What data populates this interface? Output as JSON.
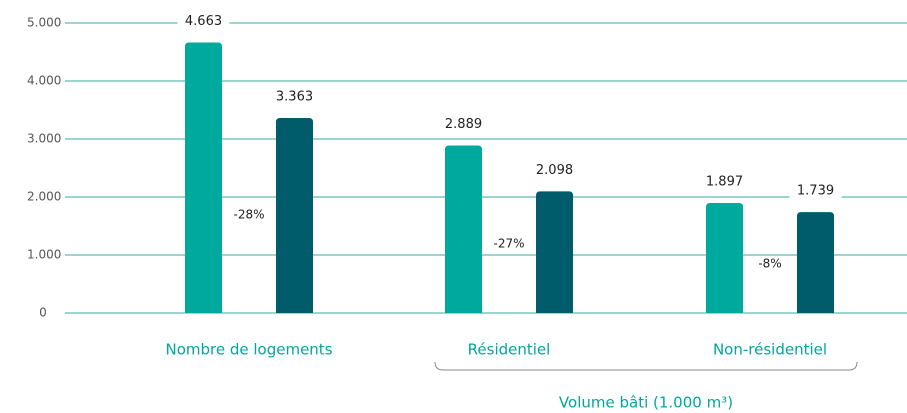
{
  "chart_data": {
    "type": "bar",
    "categories": [
      "Nombre de logements",
      "Résidentiel",
      "Non-résidentiel"
    ],
    "series": [
      {
        "color": "#00a99d",
        "values": [
          4663,
          2889,
          1897
        ],
        "value_labels": [
          "4.663",
          "2.889",
          "1.897"
        ]
      },
      {
        "color": "#005b6b",
        "values": [
          3363,
          2098,
          1739
        ],
        "value_labels": [
          "3.363",
          "2.098",
          "1.739"
        ]
      }
    ],
    "annotations": [
      "-28%",
      "-27%",
      "-8%"
    ],
    "group_label": "Volume bâti (1.000 m³)",
    "ylim": [
      0,
      5000
    ],
    "yticks": [
      0,
      {
        "value": 1000,
        "label": "1.000"
      },
      {
        "value": 2000,
        "label": "2.000"
      },
      {
        "value": 3000,
        "label": "3.000"
      },
      {
        "value": 4000,
        "label": "4.000"
      },
      {
        "value": 5000,
        "label": "5.000"
      }
    ],
    "grid": true,
    "grid_color": "#3aa99f"
  }
}
